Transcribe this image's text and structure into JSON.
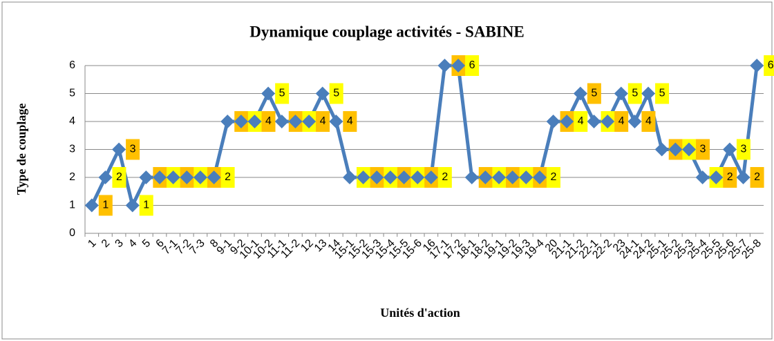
{
  "chart_data": {
    "type": "line",
    "title": "Dynamique  couplage activités - SABINE",
    "xlabel": "Unités d'action",
    "ylabel": "Type de couplage",
    "categories": [
      "1",
      "2",
      "3",
      "4",
      "5",
      "6",
      "7-1",
      "7-2",
      "7-3",
      "8",
      "9-1",
      "9-2",
      "10-1",
      "10-2",
      "11-1",
      "11-2",
      "12",
      "13",
      "14",
      "15-1",
      "15-2",
      "15-3",
      "15-4",
      "15-5",
      "15-6",
      "16",
      "17-1",
      "17-2",
      "18-1",
      "18-2",
      "19-1",
      "19-2",
      "19-3",
      "19-4",
      "20",
      "21-1",
      "21-2",
      "22-1",
      "22-2",
      "23",
      "24-1",
      "24-2",
      "25-1",
      "25-2",
      "25-3",
      "25-4",
      "25-5",
      "25-6",
      "25-7",
      "25-8"
    ],
    "series": [
      {
        "name": "Type de couplage",
        "color": "#4a7ebb",
        "values": [
          1,
          2,
          3,
          1,
          2,
          2,
          2,
          2,
          2,
          2,
          4,
          4,
          4,
          5,
          4,
          4,
          4,
          5,
          4,
          2,
          2,
          2,
          2,
          2,
          2,
          2,
          6,
          6,
          2,
          2,
          2,
          2,
          2,
          2,
          4,
          4,
          5,
          4,
          4,
          5,
          4,
          5,
          3,
          3,
          3,
          2,
          2,
          3,
          2,
          6
        ]
      }
    ],
    "ylim": [
      0,
      6
    ],
    "yticks": [
      0,
      1,
      2,
      3,
      4,
      5,
      6
    ],
    "grid": true
  }
}
